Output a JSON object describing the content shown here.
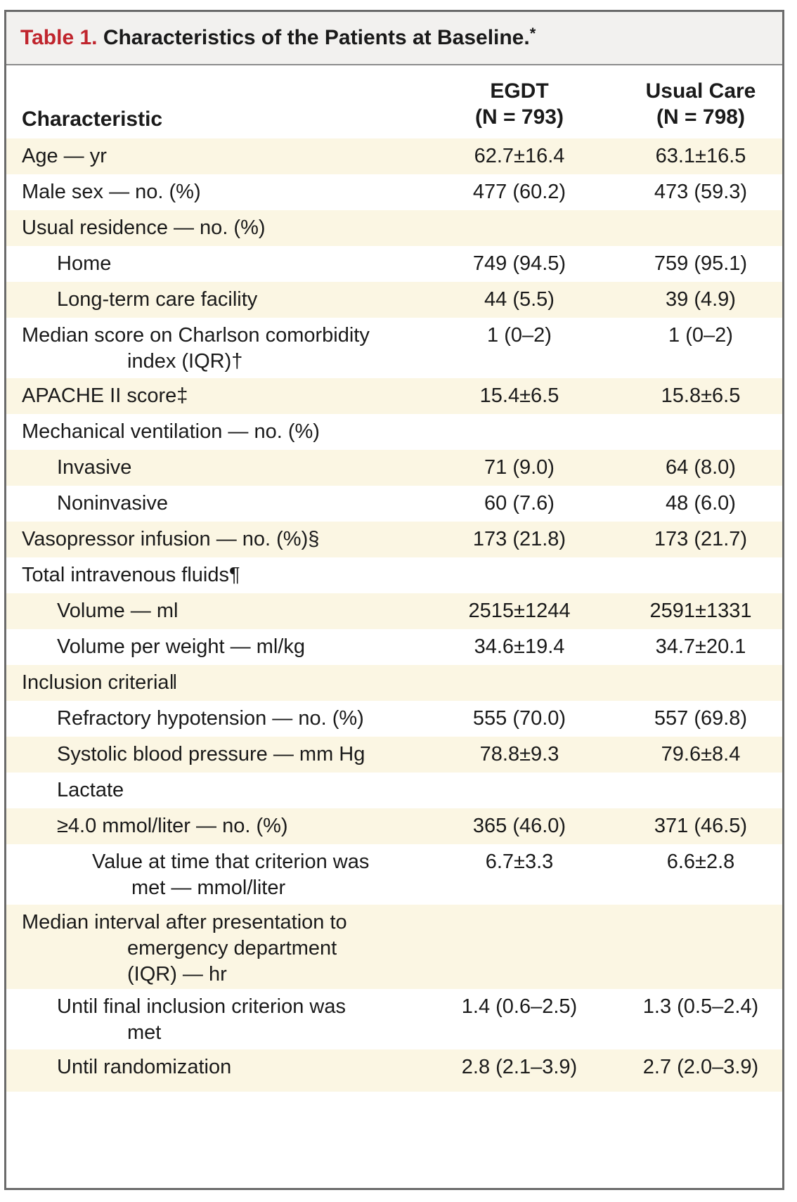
{
  "table": {
    "title_label": "Table 1.",
    "title_text": " Characteristics of the Patients at Baseline.",
    "title_mark": "*",
    "header": {
      "characteristic": "Characteristic",
      "col1_line1": "EGDT",
      "col1_line2": "(N = 793)",
      "col2_line1": "Usual Care",
      "col2_line2": "(N = 798)"
    },
    "rows": [
      {
        "label": "Age — yr",
        "label2": "",
        "label3": "",
        "egdt": "62.7±16.4",
        "usual": "63.1±16.5"
      },
      {
        "label": "Male sex — no. (%)",
        "label2": "",
        "label3": "",
        "egdt": "477 (60.2)",
        "usual": "473 (59.3)"
      },
      {
        "label": "Usual residence — no. (%)",
        "label2": "",
        "label3": "",
        "egdt": "",
        "usual": ""
      },
      {
        "label": "Home",
        "label2": "",
        "label3": "",
        "egdt": "749 (94.5)",
        "usual": "759 (95.1)"
      },
      {
        "label": "Long-term care facility",
        "label2": "",
        "label3": "",
        "egdt": "44 (5.5)",
        "usual": "39 (4.9)"
      },
      {
        "label": "Median score on Charlson comorbidity",
        "label2": "index (IQR)†",
        "label3": "",
        "egdt": "1 (0–2)",
        "usual": "1 (0–2)"
      },
      {
        "label": "APACHE II score‡",
        "label2": "",
        "label3": "",
        "egdt": "15.4±6.5",
        "usual": "15.8±6.5"
      },
      {
        "label": "Mechanical ventilation — no. (%)",
        "label2": "",
        "label3": "",
        "egdt": "",
        "usual": ""
      },
      {
        "label": "Invasive",
        "label2": "",
        "label3": "",
        "egdt": "71 (9.0)",
        "usual": "64 (8.0)"
      },
      {
        "label": "Noninvasive",
        "label2": "",
        "label3": "",
        "egdt": "60 (7.6)",
        "usual": "48 (6.0)"
      },
      {
        "label": "Vasopressor infusion — no. (%)§",
        "label2": "",
        "label3": "",
        "egdt": "173 (21.8)",
        "usual": "173 (21.7)"
      },
      {
        "label": "Total intravenous fluids¶",
        "label2": "",
        "label3": "",
        "egdt": "",
        "usual": ""
      },
      {
        "label": "Volume — ml",
        "label2": "",
        "label3": "",
        "egdt": "2515±1244",
        "usual": "2591±1331"
      },
      {
        "label": "Volume per weight — ml/kg",
        "label2": "",
        "label3": "",
        "egdt": "34.6±19.4",
        "usual": "34.7±20.1"
      },
      {
        "label": "Inclusion criteria‖",
        "label2": "",
        "label3": "",
        "egdt": "",
        "usual": ""
      },
      {
        "label": "Refractory hypotension — no. (%)",
        "label2": "",
        "label3": "",
        "egdt": "555 (70.0)",
        "usual": "557 (69.8)"
      },
      {
        "label": "Systolic blood pressure — mm Hg",
        "label2": "",
        "label3": "",
        "egdt": "78.8±9.3",
        "usual": "79.6±8.4"
      },
      {
        "label": "Lactate",
        "label2": "",
        "label3": "",
        "egdt": "",
        "usual": ""
      },
      {
        "label": "≥4.0 mmol/liter — no. (%)",
        "label2": "",
        "label3": "",
        "egdt": "365 (46.0)",
        "usual": "371 (46.5)"
      },
      {
        "label": "Value at time that criterion was",
        "label2": "met — mmol/liter",
        "label3": "",
        "egdt": "6.7±3.3",
        "usual": "6.6±2.8"
      },
      {
        "label": "Median interval after presentation to",
        "label2": "emergency department",
        "label3": "(IQR) — hr",
        "egdt": "",
        "usual": ""
      },
      {
        "label": "Until final inclusion criterion was",
        "label2": "met",
        "label3": "",
        "egdt": "1.4 (0.6–2.5)",
        "usual": "1.3 (0.5–2.4)"
      },
      {
        "label": "Until randomization",
        "label2": "",
        "label3": "",
        "egdt": "2.8 (2.1–3.9)",
        "usual": "2.7 (2.0–3.9)"
      }
    ]
  }
}
